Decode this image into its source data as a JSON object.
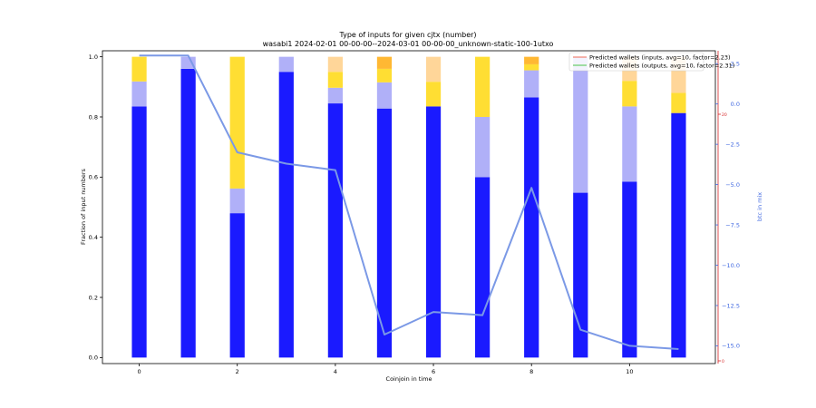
{
  "chart_data": {
    "type": "bar",
    "title_line1": "Type of inputs for given cjtx (number)",
    "title_line2": "wasabi1 2024-02-01 00-00-00--2024-03-01 00-00-00_unknown-static-100-1utxo",
    "xlabel": "Coinjoin in time",
    "ylabel": "Fraction of input numbers",
    "ylabel_right": "btc in mix",
    "x_ticks": [
      "0",
      "2",
      "4",
      "6",
      "8",
      "10"
    ],
    "y_ticks": [
      "0.0",
      "0.2",
      "0.4",
      "0.6",
      "0.8",
      "1.0"
    ],
    "y_right_ticks": [
      "2.5",
      "0.0",
      "−2.5",
      "−5.0",
      "−7.5",
      "−10.0",
      "−12.5",
      "−15.0"
    ],
    "xlim": [
      -0.75,
      11.75
    ],
    "ylim": [
      -0.02,
      1.02
    ],
    "ylim_right": [
      -16.1,
      3.3
    ],
    "red_axis_ticks": [
      "20",
      "0"
    ],
    "categories": [
      0,
      1,
      2,
      3,
      4,
      5,
      6,
      7,
      8,
      9,
      10,
      11
    ],
    "series": [
      {
        "color": "#1a1aff",
        "values": [
          0.835,
          0.96,
          0.48,
          0.95,
          0.845,
          0.828,
          0.835,
          0.6,
          0.865,
          0.548,
          0.585,
          0.813
        ]
      },
      {
        "color": "#b0b0f8",
        "values": [
          0.083,
          0.04,
          0.082,
          0.05,
          0.052,
          0.087,
          0.0,
          0.2,
          0.09,
          0.452,
          0.25,
          0.0
        ]
      },
      {
        "color": "#ffde33",
        "values": [
          0.082,
          0.0,
          0.438,
          0.0,
          0.053,
          0.045,
          0.082,
          0.2,
          0.02,
          0.0,
          0.085,
          0.067
        ]
      },
      {
        "color": "#ffd699",
        "values": [
          0.0,
          0.0,
          0.0,
          0.0,
          0.05,
          0.0,
          0.083,
          0.0,
          0.0,
          0.0,
          0.08,
          0.12
        ]
      },
      {
        "color": "#ffb833",
        "values": [
          0.0,
          0.0,
          0.0,
          0.0,
          0.0,
          0.04,
          0.0,
          0.0,
          0.025,
          0.0,
          0.0,
          0.0
        ]
      }
    ],
    "line_right": {
      "color": "#7b99e6",
      "x": [
        0,
        1,
        2,
        3,
        4,
        5,
        6,
        7,
        8,
        9,
        10,
        11
      ],
      "y": [
        3.0,
        3.0,
        -3.0,
        -3.7,
        -4.1,
        -14.3,
        -12.9,
        -13.1,
        -5.2,
        -14.0,
        -15.0,
        -15.2
      ]
    },
    "legend": [
      {
        "label": "Predicted wallets (inputs, avg=10, factor=2.23)",
        "color": "#f08070"
      },
      {
        "label": "Predicted wallets (outputs, avg=10, factor=2.31)",
        "color": "#66cc66"
      }
    ],
    "legend_position": "top-right",
    "grid": false
  }
}
